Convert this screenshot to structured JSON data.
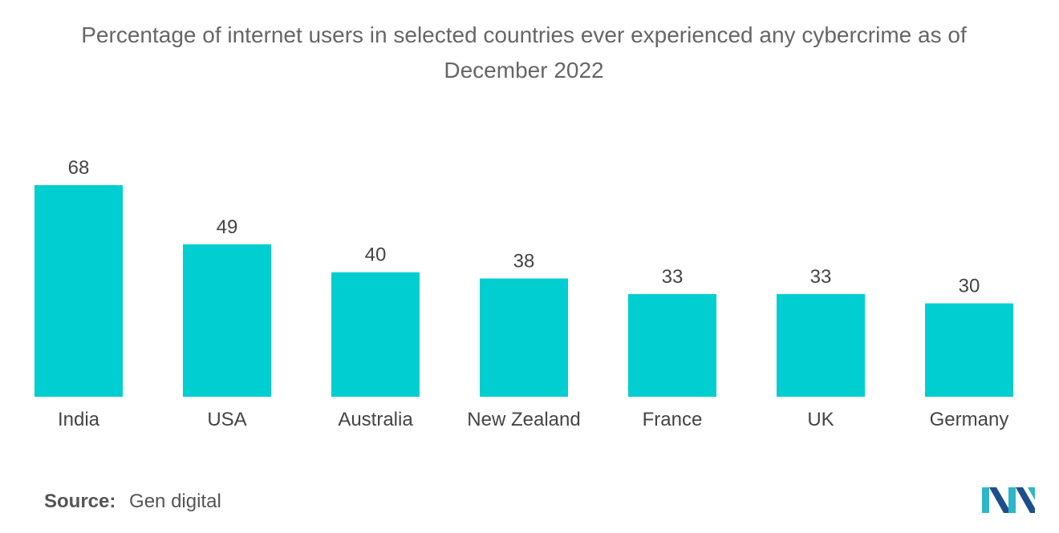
{
  "chart_data": {
    "type": "bar",
    "title": "Percentage of internet users in selected countries ever experienced any cybercrime as of December 2022",
    "title_lines": [
      "Percentage of internet users in selected countries ever experienced any cybercrime as of",
      "December 2022"
    ],
    "categories": [
      "India",
      "USA",
      "Australia",
      "New Zealand",
      "France",
      "UK",
      "Germany"
    ],
    "values": [
      68,
      49,
      40,
      38,
      33,
      33,
      30
    ],
    "xlabel": "",
    "ylabel": "",
    "ylim": [
      0,
      68
    ],
    "grid": false,
    "bar_color": "#00CED1"
  },
  "source": {
    "label": "Source:",
    "value": "Gen digital"
  },
  "logo": {
    "icon": "mordor-intelligence-logo-icon",
    "colors": [
      "#1f4e8c",
      "#2fb5c8"
    ]
  }
}
